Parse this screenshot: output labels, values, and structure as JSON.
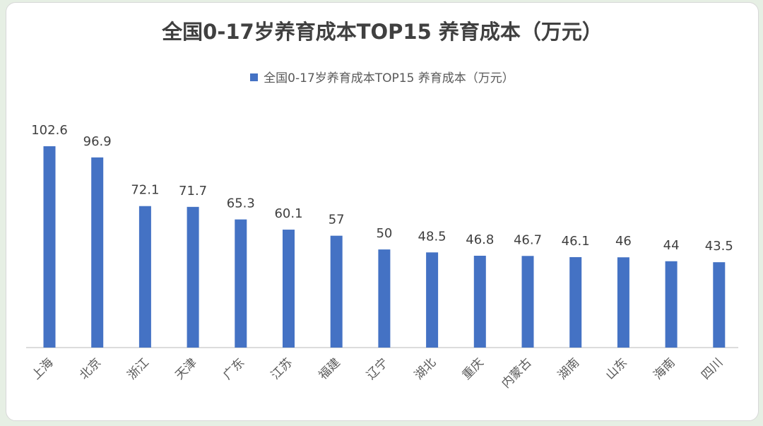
{
  "chart_data": {
    "type": "bar",
    "title": "全国0-17岁养育成本TOP15 养育成本（万元）",
    "legend": {
      "position": "top"
    },
    "series": [
      {
        "name": "全国0-17岁养育成本TOP15 养育成本（万元）",
        "color": "#4472c4",
        "values": [
          102.6,
          96.9,
          72.1,
          71.7,
          65.3,
          60.1,
          57,
          50,
          48.5,
          46.8,
          46.7,
          46.1,
          46,
          44,
          43.5
        ]
      }
    ],
    "categories": [
      "上海",
      "北京",
      "浙江",
      "天津",
      "广东",
      "江苏",
      "福建",
      "辽宁",
      "湖北",
      "重庆",
      "内蒙古",
      "湖南",
      "山东",
      "海南",
      "四川"
    ],
    "data_labels": [
      "102.6",
      "96.9",
      "72.1",
      "71.7",
      "65.3",
      "60.1",
      "57",
      "50",
      "48.5",
      "46.8",
      "46.7",
      "46.1",
      "46",
      "44",
      "43.5"
    ],
    "ylim": [
      0,
      102.6
    ],
    "grid": false
  }
}
